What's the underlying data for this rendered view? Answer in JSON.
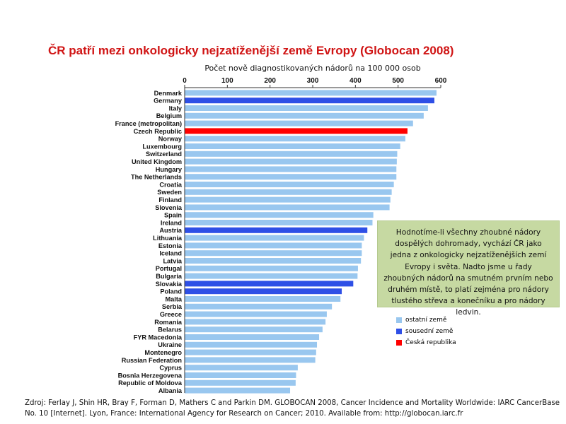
{
  "title": "ČR patří mezi onkologicky nejzatíženější země  Evropy (Globocan 2008)",
  "colors": {
    "other": "#99c7ef",
    "neighbor": "#2e4fe6",
    "czech": "#ff0000",
    "title": "#d01414",
    "info_bg": "#c6d9a2"
  },
  "chart_data": {
    "type": "bar",
    "orientation": "horizontal",
    "xlabel": "Počet nově diagnostikovaných nádorů na 100 000 osob",
    "xlim": [
      0,
      600
    ],
    "xticks": [
      0,
      100,
      200,
      300,
      400,
      500,
      600
    ],
    "grid": false,
    "categories": [
      "Denmark",
      "Germany",
      "Italy",
      "Belgium",
      "France (metropolitan)",
      "Czech Republic",
      "Norway",
      "Luxembourg",
      "Switzerland",
      "United Kingdom",
      "Hungary",
      "The Netherlands",
      "Croatia",
      "Sweden",
      "Finland",
      "Slovenia",
      "Spain",
      "Ireland",
      "Austria",
      "Lithuania",
      "Estonia",
      "Iceland",
      "Latvia",
      "Portugal",
      "Bulgaria",
      "Slovakia",
      "Poland",
      "Malta",
      "Serbia",
      "Greece",
      "Romania",
      "Belarus",
      "FYR Macedonia",
      "Ukraine",
      "Montenegro",
      "Russian Federation",
      "Cyprus",
      "Bosnia Herzegovena",
      "Republic of Moldova",
      "Albania"
    ],
    "values": [
      590,
      585,
      570,
      560,
      535,
      522,
      517,
      505,
      498,
      497,
      496,
      496,
      490,
      485,
      482,
      480,
      442,
      440,
      428,
      420,
      415,
      415,
      413,
      406,
      405,
      395,
      368,
      365,
      345,
      333,
      330,
      323,
      315,
      310,
      308,
      306,
      265,
      261,
      260,
      247
    ],
    "groups": [
      "other",
      "neighbor",
      "other",
      "other",
      "other",
      "czech",
      "other",
      "other",
      "other",
      "other",
      "other",
      "other",
      "other",
      "other",
      "other",
      "other",
      "other",
      "other",
      "neighbor",
      "other",
      "other",
      "other",
      "other",
      "other",
      "other",
      "neighbor",
      "neighbor",
      "other",
      "other",
      "other",
      "other",
      "other",
      "other",
      "other",
      "other",
      "other",
      "other",
      "other",
      "other",
      "other"
    ],
    "legend": [
      {
        "key": "other",
        "label": "ostatní země"
      },
      {
        "key": "neighbor",
        "label": "sousední země"
      },
      {
        "key": "czech",
        "label": "Česká republika"
      }
    ],
    "legend_position": "right"
  },
  "info_text": "Hodnotíme-li všechny zhoubné nádory dospělých dohromady, vychází ČR jako jedna z onkologicky nejzatíženějších zemí Evropy i světa. Nadto jsme u řady zhoubných nádorů na smutném prvním nebo druhém místě, to platí zejména pro nádory tlustého  střeva a konečníku a pro nádory ledvin.",
  "source": "Zdroj: Ferlay J, Shin HR, Bray F, Forman D, Mathers C and Parkin DM. GLOBOCAN 2008, Cancer Incidence and Mortality Worldwide: IARC CancerBase No. 10 [Internet]. Lyon, France: International Agency for Research on Cancer; 2010. Available from: http://globocan.iarc.fr"
}
